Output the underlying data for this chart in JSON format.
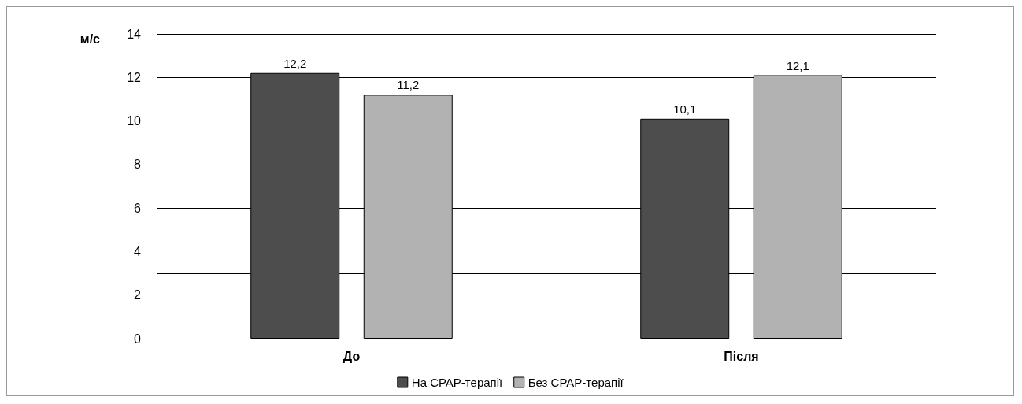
{
  "chart_data": {
    "type": "bar",
    "ylabel": "м/с",
    "categories": [
      "До",
      "Після"
    ],
    "series": [
      {
        "name": "На CPAP-терапії",
        "color": "#4d4d4d",
        "values": [
          12.2,
          10.1
        ],
        "value_labels": [
          "12,2",
          "10,1"
        ]
      },
      {
        "name": "Без CPAP-терапії",
        "color": "#b2b2b2",
        "values": [
          11.2,
          12.1
        ],
        "value_labels": [
          "11,2",
          "12,1"
        ]
      }
    ],
    "ylim": [
      0,
      14
    ],
    "yticks": [
      0,
      2,
      4,
      6,
      8,
      10,
      12,
      14
    ],
    "grid": "y",
    "legend": "bottom"
  }
}
